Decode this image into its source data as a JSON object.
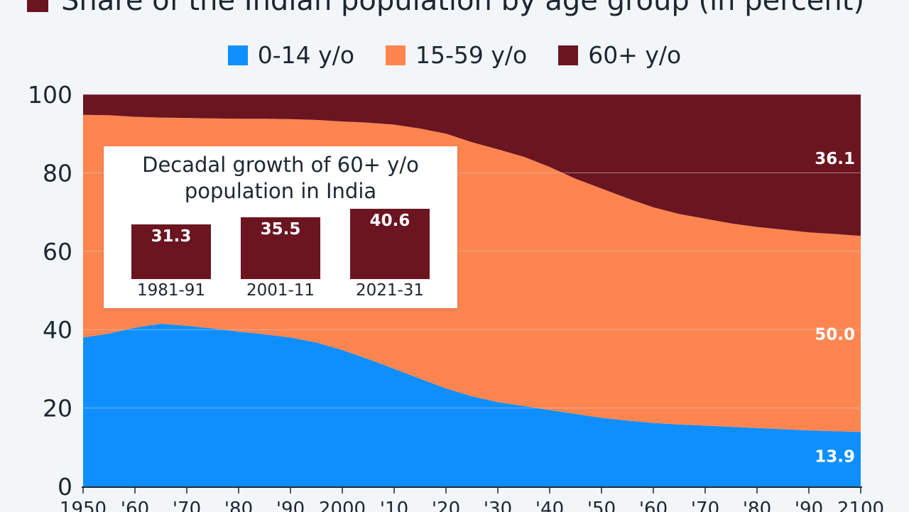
{
  "title": "Share of the Indian population by age group (in percent)",
  "colors": {
    "title_swatch": "#6b1521",
    "young": "#0f8fff",
    "working": "#fe8550",
    "old": "#6b1521",
    "background": "#f3f6f8",
    "grid": "#c9cdd2"
  },
  "chart_data": [
    {
      "type": "area",
      "stacked": true,
      "title": "Share of the Indian population by age group (in percent)",
      "xlabel": "",
      "ylabel": "",
      "ylim": [
        0,
        100
      ],
      "yticks": [
        0,
        20,
        40,
        60,
        80,
        100
      ],
      "xlim": [
        1950,
        2100
      ],
      "x": [
        1950,
        1955,
        1960,
        1965,
        1970,
        1975,
        1980,
        1985,
        1990,
        1995,
        2000,
        2005,
        2010,
        2015,
        2020,
        2025,
        2030,
        2035,
        2040,
        2045,
        2050,
        2055,
        2060,
        2065,
        2070,
        2075,
        2080,
        2085,
        2090,
        2095,
        2100
      ],
      "xtick_values": [
        1950,
        1960,
        1970,
        1980,
        1990,
        2000,
        2010,
        2020,
        2030,
        2040,
        2050,
        2060,
        2070,
        2080,
        2090,
        2100
      ],
      "xtick_labels": [
        "1950",
        "'60",
        "'70",
        "'80",
        "'90",
        "2000",
        "'10",
        "'20",
        "'30",
        "'40",
        "'50",
        "'60",
        "'70",
        "'80",
        "'90",
        "2100"
      ],
      "legend_position": "top-center",
      "series": [
        {
          "name": "0-14 y/o",
          "color": "#0f8fff",
          "values": [
            38.0,
            39.0,
            40.5,
            41.5,
            41.0,
            40.3,
            39.5,
            38.8,
            38.0,
            36.7,
            34.8,
            32.5,
            30.0,
            27.5,
            25.0,
            23.0,
            21.5,
            20.5,
            19.5,
            18.5,
            17.5,
            16.8,
            16.2,
            15.8,
            15.5,
            15.2,
            14.9,
            14.6,
            14.3,
            14.1,
            13.9
          ]
        },
        {
          "name": "15-59 y/o",
          "color": "#fe8550",
          "values": [
            56.8,
            55.7,
            53.8,
            52.6,
            53.0,
            53.6,
            54.3,
            55.0,
            55.7,
            56.8,
            58.3,
            60.3,
            62.3,
            63.8,
            65.0,
            64.8,
            64.5,
            63.6,
            62.0,
            60.0,
            58.5,
            56.7,
            55.0,
            53.7,
            52.8,
            51.9,
            51.3,
            50.9,
            50.5,
            50.3,
            50.0
          ]
        },
        {
          "name": "60+ y/o",
          "color": "#6b1521",
          "values": [
            5.2,
            5.3,
            5.7,
            5.9,
            6.0,
            6.1,
            6.2,
            6.2,
            6.3,
            6.5,
            6.9,
            7.2,
            7.7,
            8.7,
            10.0,
            12.2,
            14.0,
            15.9,
            18.5,
            21.5,
            24.0,
            26.5,
            28.8,
            30.5,
            31.7,
            32.9,
            33.8,
            34.5,
            35.2,
            35.6,
            36.1
          ]
        }
      ],
      "end_labels": [
        "13.9",
        "50.0",
        "36.1"
      ]
    },
    {
      "type": "bar",
      "title": "Decadal growth of 60+ y/o population in India",
      "categories": [
        "1981-91",
        "2001-11",
        "2021-31"
      ],
      "values": [
        31.3,
        35.5,
        40.6
      ],
      "value_labels": [
        "31.3",
        "35.5",
        "40.6"
      ],
      "color": "#6b1521"
    }
  ]
}
